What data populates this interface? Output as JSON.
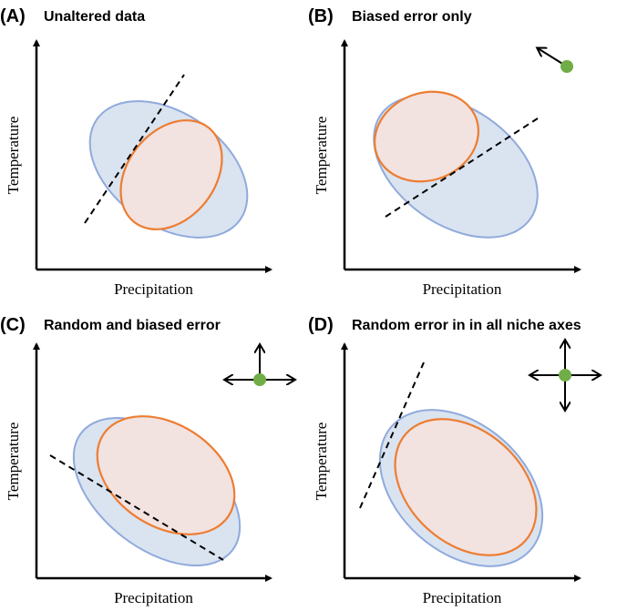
{
  "colors": {
    "niche_stroke": "#8faadc",
    "niche_fill": "#dae3f0",
    "subset_stroke": "#ed7d31",
    "subset_fill": "#f2e2e0",
    "point": "#70ad47",
    "axis": "#000000"
  },
  "panels": [
    {
      "tag": "(A)",
      "title": "Unaltered data",
      "xlabel": "Precipitation",
      "ylabel": "Temperature",
      "error_indicator": "none"
    },
    {
      "tag": "(B)",
      "title": "Biased error only",
      "xlabel": "Precipitation",
      "ylabel": "Temperature",
      "error_indicator": "single-arrow-up-left"
    },
    {
      "tag": "(C)",
      "title": "Random and biased error",
      "xlabel": "Precipitation",
      "ylabel": "Temperature",
      "error_indicator": "three-arrows-up-left-right"
    },
    {
      "tag": "(D)",
      "title": "Random error in in all niche axes",
      "xlabel": "Precipitation",
      "ylabel": "Temperature",
      "error_indicator": "four-arrows-all-directions"
    }
  ]
}
